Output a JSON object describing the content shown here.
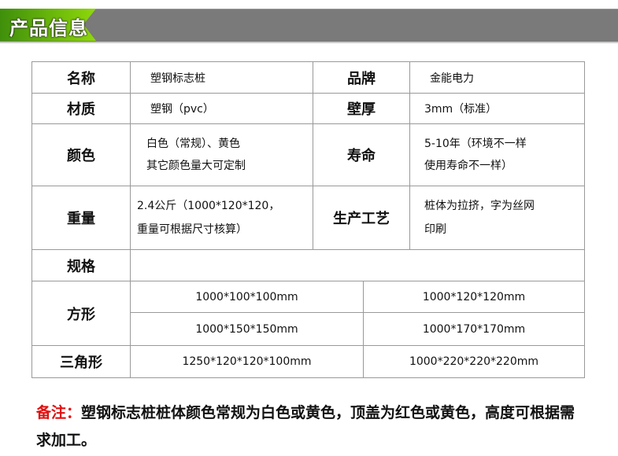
{
  "header": {
    "title": "产品信息"
  },
  "rows": [
    {
      "l1": "名称",
      "v1": "塑钢标志桩",
      "l2": "品牌",
      "v2": "金能电力"
    },
    {
      "l1": "材质",
      "v1": "塑钢（pvc）",
      "l2": "壁厚",
      "v2": "3mm（标准）"
    },
    {
      "l1": "颜色",
      "v1a": "白色（常规）、黄色",
      "v1b": "其它颜色量大可定制",
      "l2": "寿命",
      "v2a": "5-10年（环境不一样",
      "v2b": "使用寿命不一样）"
    },
    {
      "l1": "重量",
      "v1a": "2.4公斤（1000*120*120，",
      "v1b": "重量可根据尺寸核算）",
      "l2": "生产工艺",
      "v2a": "桩体为拉挤，字为丝网",
      "v2b": "印刷"
    }
  ],
  "spec": {
    "label": "规格",
    "square": {
      "label": "方形",
      "items": [
        "1000*100*100mm",
        "1000*120*120mm",
        "1000*150*150mm",
        "1000*170*170mm"
      ]
    },
    "triangle": {
      "label": "三角形",
      "items": [
        "1250*120*120*100mm",
        "1000*220*220*220mm"
      ]
    }
  },
  "note": {
    "label": "备注：",
    "text": "塑钢标志桩桩体颜色常规为白色或黄色，顶盖为红色或黄色，高度可根据需求加工。"
  }
}
